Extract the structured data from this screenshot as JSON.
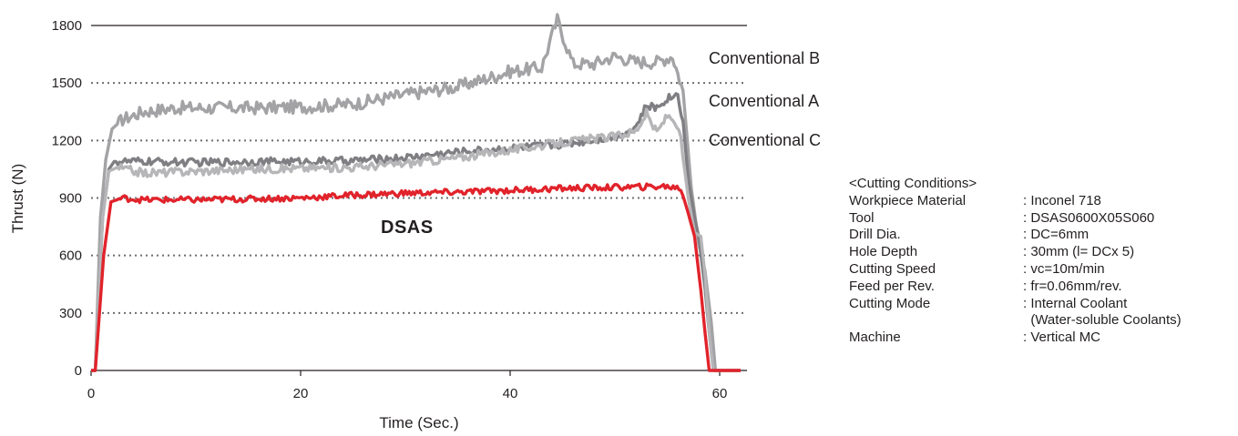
{
  "chart_data": {
    "type": "line",
    "xlabel": "Time (Sec.)",
    "ylabel": "Thrust (N)",
    "xlim": [
      0,
      63
    ],
    "ylim": [
      0,
      1800
    ],
    "xticks": [
      0,
      20,
      40,
      60
    ],
    "yticks": [
      0,
      300,
      600,
      900,
      1200,
      1500,
      1800
    ],
    "grid": "dotted horizontal",
    "series": [
      {
        "name": "Conventional B",
        "color": "#a3a3a6",
        "points": [
          [
            0,
            0
          ],
          [
            0.4,
            0
          ],
          [
            0.9,
            800
          ],
          [
            1.4,
            1100
          ],
          [
            2,
            1260
          ],
          [
            3,
            1310
          ],
          [
            5,
            1350
          ],
          [
            8,
            1370
          ],
          [
            12,
            1370
          ],
          [
            16,
            1370
          ],
          [
            20,
            1375
          ],
          [
            25,
            1390
          ],
          [
            30,
            1440
          ],
          [
            35,
            1480
          ],
          [
            40,
            1560
          ],
          [
            43,
            1580
          ],
          [
            44.5,
            1830
          ],
          [
            46,
            1600
          ],
          [
            48,
            1600
          ],
          [
            50,
            1640
          ],
          [
            52,
            1610
          ],
          [
            54,
            1610
          ],
          [
            55.5,
            1640
          ],
          [
            56.5,
            1460
          ],
          [
            57.3,
            950
          ],
          [
            58,
            660
          ],
          [
            58.6,
            520
          ],
          [
            59.2,
            250
          ],
          [
            59.6,
            0
          ],
          [
            62,
            0
          ]
        ]
      },
      {
        "name": "Conventional A",
        "color": "#7f7f83",
        "points": [
          [
            0,
            0
          ],
          [
            0.4,
            0
          ],
          [
            1.1,
            800
          ],
          [
            1.7,
            1050
          ],
          [
            2.2,
            1090
          ],
          [
            5,
            1090
          ],
          [
            10,
            1085
          ],
          [
            15,
            1090
          ],
          [
            20,
            1090
          ],
          [
            25,
            1095
          ],
          [
            30,
            1110
          ],
          [
            35,
            1140
          ],
          [
            40,
            1160
          ],
          [
            45,
            1180
          ],
          [
            50,
            1220
          ],
          [
            52,
            1270
          ],
          [
            53,
            1380
          ],
          [
            54,
            1370
          ],
          [
            55,
            1420
          ],
          [
            56,
            1440
          ],
          [
            56.5,
            1300
          ],
          [
            57,
            1000
          ],
          [
            57.6,
            800
          ],
          [
            58,
            700
          ],
          [
            58.6,
            430
          ],
          [
            59,
            200
          ],
          [
            59.4,
            0
          ],
          [
            62,
            0
          ]
        ]
      },
      {
        "name": "Conventional C",
        "color": "#b6b6b8",
        "points": [
          [
            0,
            0
          ],
          [
            0.4,
            0
          ],
          [
            1.1,
            800
          ],
          [
            1.7,
            1040
          ],
          [
            2.5,
            1060
          ],
          [
            5,
            1030
          ],
          [
            10,
            1040
          ],
          [
            15,
            1050
          ],
          [
            20,
            1055
          ],
          [
            25,
            1060
          ],
          [
            30,
            1080
          ],
          [
            35,
            1110
          ],
          [
            40,
            1150
          ],
          [
            45,
            1190
          ],
          [
            48,
            1210
          ],
          [
            50,
            1220
          ],
          [
            52,
            1250
          ],
          [
            53,
            1340
          ],
          [
            54,
            1240
          ],
          [
            55,
            1330
          ],
          [
            55.7,
            1310
          ],
          [
            56.3,
            1200
          ],
          [
            57,
            900
          ],
          [
            57.6,
            720
          ],
          [
            58.2,
            700
          ],
          [
            58.6,
            500
          ],
          [
            59,
            200
          ],
          [
            59.4,
            0
          ],
          [
            62,
            0
          ]
        ]
      },
      {
        "name": "DSAS",
        "color": "#e1232b",
        "points": [
          [
            0,
            0
          ],
          [
            0.4,
            0
          ],
          [
            1.2,
            600
          ],
          [
            1.9,
            880
          ],
          [
            3,
            900
          ],
          [
            5,
            890
          ],
          [
            10,
            890
          ],
          [
            15,
            895
          ],
          [
            20,
            900
          ],
          [
            25,
            915
          ],
          [
            30,
            925
          ],
          [
            35,
            930
          ],
          [
            40,
            940
          ],
          [
            45,
            950
          ],
          [
            50,
            955
          ],
          [
            55,
            960
          ],
          [
            56.3,
            950
          ],
          [
            57,
            820
          ],
          [
            57.6,
            700
          ],
          [
            58.2,
            420
          ],
          [
            58.6,
            200
          ],
          [
            59,
            0
          ],
          [
            62,
            0
          ]
        ]
      }
    ],
    "annotations": [
      "Conventional B",
      "Conventional A",
      "Conventional C",
      "DSAS"
    ]
  },
  "conditions": {
    "header": "<Cutting Conditions>",
    "rows": [
      {
        "key": "Workpiece Material",
        "value": ": Inconel 718"
      },
      {
        "key": "Tool",
        "value": ": DSAS0600X05S060"
      },
      {
        "key": "Drill Dia.",
        "value": ": DC=6mm"
      },
      {
        "key": "Hole Depth",
        "value": ": 30mm (l= DCx 5)"
      },
      {
        "key": "Cutting Speed",
        "value": ": vc=10m/min"
      },
      {
        "key": "Feed per Rev.",
        "value": ": fr=0.06mm/rev."
      },
      {
        "key": "Cutting Mode",
        "value": ": Internal Coolant"
      },
      {
        "key": "",
        "value": "  (Water-soluble Coolants)"
      },
      {
        "key": "Machine",
        "value": ": Vertical MC"
      }
    ]
  }
}
